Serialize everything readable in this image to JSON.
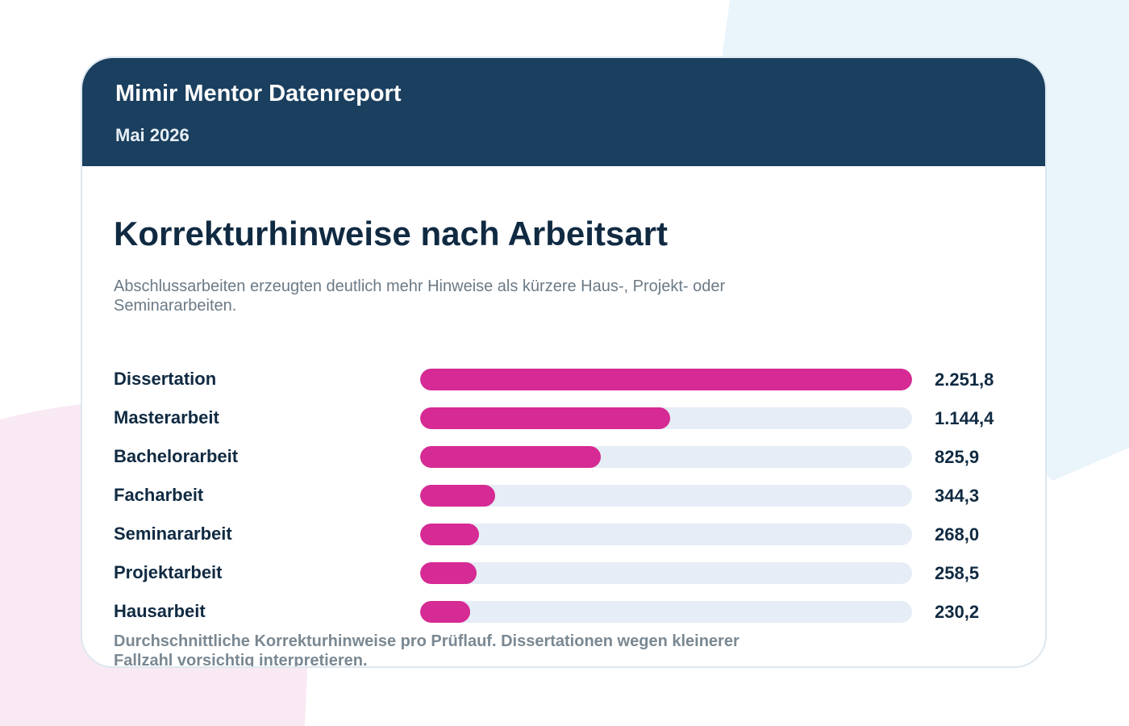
{
  "header": {
    "brand": "Mimir Mentor Datenreport",
    "period": "Mai 2026"
  },
  "colors": {
    "header_bg": "#1a3f5f",
    "bar_fill": "#d62a94",
    "bar_track": "#e6edf6",
    "bg_blue_blob": "#e9f4fb",
    "bg_pink_blob": "#f9e9f3"
  },
  "chart_data": {
    "type": "bar",
    "orientation": "horizontal",
    "title": "Korrekturhinweise nach Arbeitsart",
    "subtitle": "Abschlussarbeiten erzeugten deutlich mehr Hinweise als kürzere Haus-, Projekt- oder Seminararbeiten.",
    "footnote": "Durchschnittliche Korrekturhinweise pro Prüflauf. Dissertationen wegen kleinerer Fallzahl vorsichtig interpretieren.",
    "categories": [
      "Dissertation",
      "Masterarbeit",
      "Bachelorarbeit",
      "Facharbeit",
      "Seminararbeit",
      "Projektarbeit",
      "Hausarbeit"
    ],
    "values": [
      2251.8,
      1144.4,
      825.9,
      344.3,
      268.0,
      258.5,
      230.2
    ],
    "value_labels": [
      "2.251,8",
      "1.144,4",
      "825,9",
      "344,3",
      "268,0",
      "258,5",
      "230,2"
    ],
    "xlim": [
      0,
      2251.8
    ],
    "grid": false,
    "legend": "none"
  }
}
